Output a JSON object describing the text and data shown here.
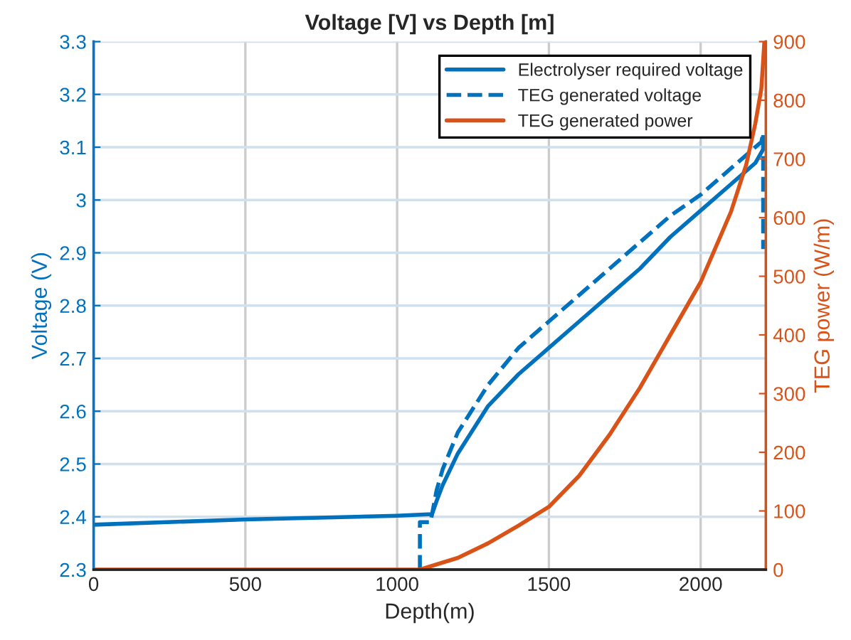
{
  "chart_data": {
    "type": "line",
    "title": "Voltage [V] vs Depth [m]",
    "xlabel": "Depth(m)",
    "ylabel": "Voltage (V)",
    "y2label": "TEG power (W/m)",
    "xlim": [
      0,
      2215
    ],
    "xticks": [
      0,
      500,
      1000,
      1500,
      2000
    ],
    "ylim": [
      2.3,
      3.3
    ],
    "yticks": [
      2.3,
      2.4,
      2.5,
      2.6,
      2.7,
      2.8,
      2.9,
      3,
      3.1,
      3.2,
      3.3
    ],
    "y2lim": [
      0,
      900
    ],
    "y2ticks": [
      0,
      100,
      200,
      300,
      400,
      500,
      600,
      700,
      800,
      900
    ],
    "grid": true,
    "legend": "top right",
    "series": [
      {
        "name": "Electrolyser required voltage",
        "color": "#0072bd",
        "line_style": "solid",
        "x": [
          0,
          500,
          1000,
          1115,
          1130,
          1150,
          1200,
          1300,
          1400,
          1500,
          1600,
          1700,
          1800,
          1900,
          2000,
          2100,
          2180,
          2210
        ],
        "values": [
          2.385,
          2.395,
          2.402,
          2.405,
          2.43,
          2.46,
          2.52,
          2.61,
          2.67,
          2.72,
          2.77,
          2.82,
          2.87,
          2.93,
          2.98,
          3.03,
          3.07,
          3.1
        ]
      },
      {
        "name": "TEG generated voltage",
        "color": "#0072bd",
        "line_style": "dashed",
        "x": [
          1075,
          1075,
          1110,
          1130,
          1150,
          1200,
          1300,
          1400,
          1500,
          1600,
          1700,
          1800,
          1900,
          2000,
          2100,
          2200,
          2206,
          2206
        ],
        "values": [
          2.3,
          2.39,
          2.39,
          2.45,
          2.49,
          2.56,
          2.65,
          2.72,
          2.77,
          2.82,
          2.87,
          2.92,
          2.97,
          3.01,
          3.06,
          3.11,
          3.127,
          2.907
        ]
      },
      {
        "name": "TEG generated power",
        "color": "#d95319",
        "line_style": "solid",
        "axis": "y2",
        "x": [
          0,
          1075,
          1200,
          1300,
          1400,
          1500,
          1600,
          1700,
          1800,
          1900,
          2000,
          2100,
          2150,
          2180,
          2200,
          2210
        ],
        "values": [
          0,
          0,
          20,
          45,
          75,
          107,
          160,
          230,
          310,
          400,
          490,
          610,
          690,
          760,
          820,
          900
        ]
      }
    ]
  }
}
